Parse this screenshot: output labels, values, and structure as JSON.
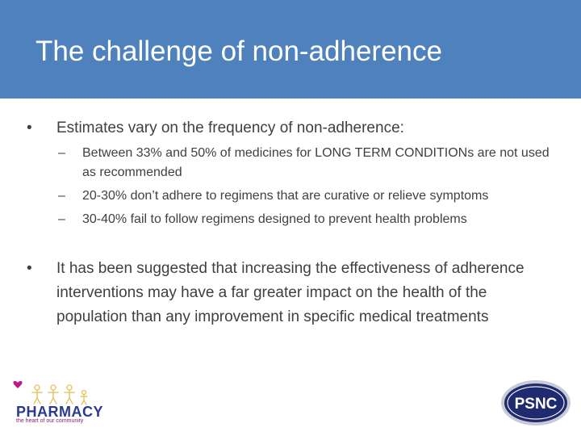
{
  "slide": {
    "title": "The challenge of non-adherence",
    "bullet_marker": "•",
    "sub_marker": "–"
  },
  "bullets": [
    {
      "text": "Estimates vary on the frequency of non-adherence:",
      "sub": [
        "Between 33% and 50% of medicines for LONG TERM CONDITIONs are not used as recommended",
        "20-30% don’t adhere to regimens that are curative or relieve symptoms",
        "30-40% fail to follow regimens designed to prevent health problems"
      ]
    },
    {
      "text": "It has been suggested that increasing the effectiveness of adherence interventions may have a far greater impact on the health of the population than any improvement in specific medical treatments"
    }
  ],
  "logos": {
    "left_text": "PHARMACY",
    "left_tagline": "the heart of our community",
    "right_text": "PSNC"
  },
  "colors": {
    "title_bar": "#4f81bd",
    "body_text": "#404040",
    "logo_navy": "#2b3990",
    "logo_magenta": "#8a1c7c"
  }
}
